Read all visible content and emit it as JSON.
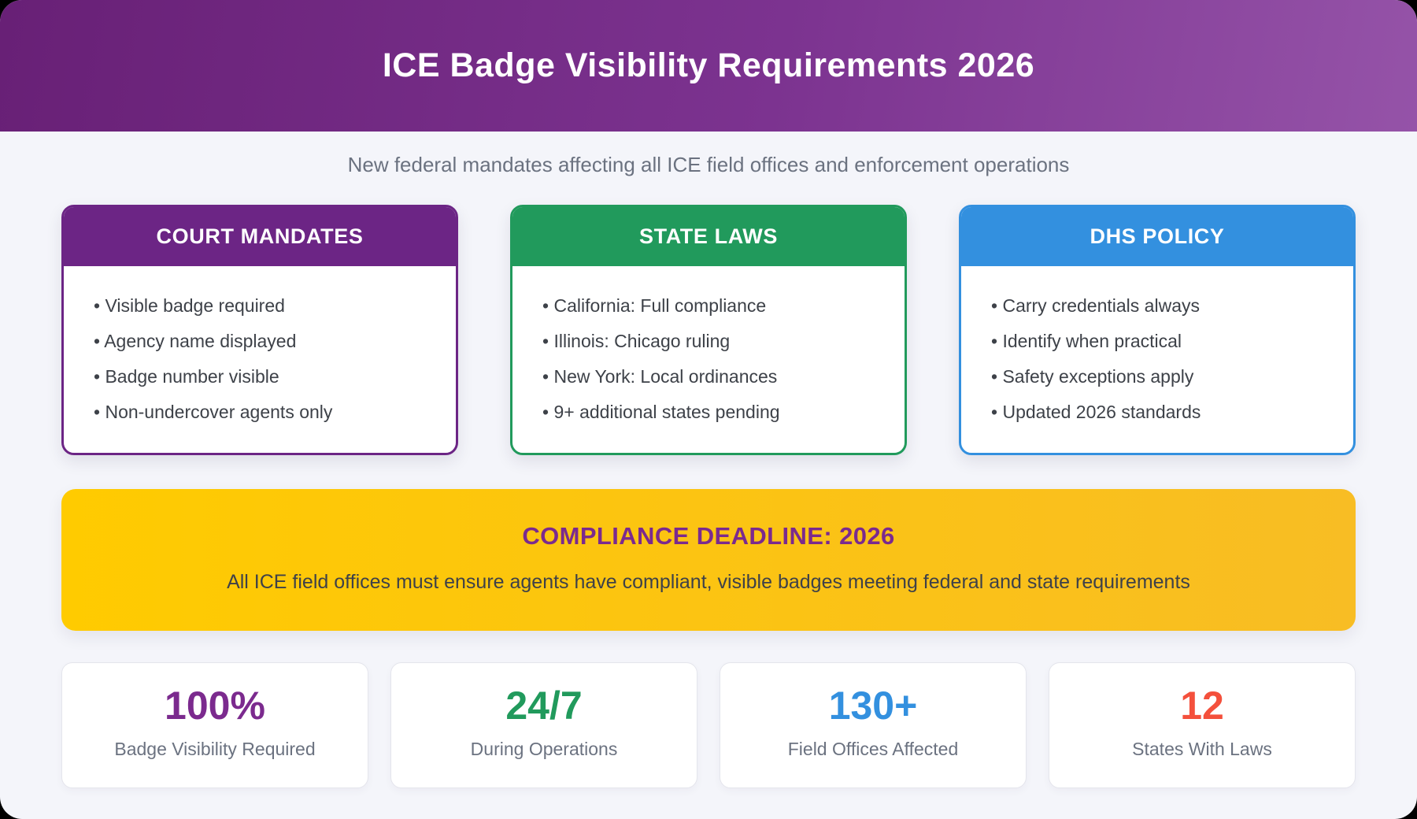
{
  "page": {
    "title": "ICE Badge Visibility Requirements 2026",
    "subtitle": "New federal mandates affecting all ICE field offices and enforcement operations"
  },
  "colors": {
    "header_gradient_start": "#682076",
    "header_gradient_end": "#9553A8",
    "purple": "#6C2585",
    "green": "#219A5C",
    "blue": "#3390DF",
    "gold": "#FFC400",
    "red": "#F4503C",
    "accent_purple": "#7B2A8E",
    "background": "#F4F5FA"
  },
  "cards": [
    {
      "title": "COURT MANDATES",
      "color": "#6C2585",
      "items": [
        "Visible badge required",
        "Agency name displayed",
        "Badge number visible",
        "Non-undercover agents only"
      ]
    },
    {
      "title": "STATE LAWS",
      "color": "#219A5C",
      "items": [
        "California: Full compliance",
        "Illinois: Chicago ruling",
        "New York: Local ordinances",
        "9+ additional states pending"
      ]
    },
    {
      "title": "DHS POLICY",
      "color": "#3390DF",
      "items": [
        "Carry credentials always",
        "Identify when practical",
        "Safety exceptions apply",
        "Updated 2026 standards"
      ]
    }
  ],
  "banner": {
    "title": "COMPLIANCE DEADLINE: 2026",
    "text": "All ICE field offices must ensure agents have compliant, visible badges meeting federal and state requirements"
  },
  "stats": [
    {
      "value": "100%",
      "label": "Badge Visibility Required",
      "color": "#7B2A8E"
    },
    {
      "value": "24/7",
      "label": "During Operations",
      "color": "#219A5C"
    },
    {
      "value": "130+",
      "label": "Field Offices Affected",
      "color": "#3390DF"
    },
    {
      "value": "12",
      "label": "States With Laws",
      "color": "#F4503C"
    }
  ]
}
